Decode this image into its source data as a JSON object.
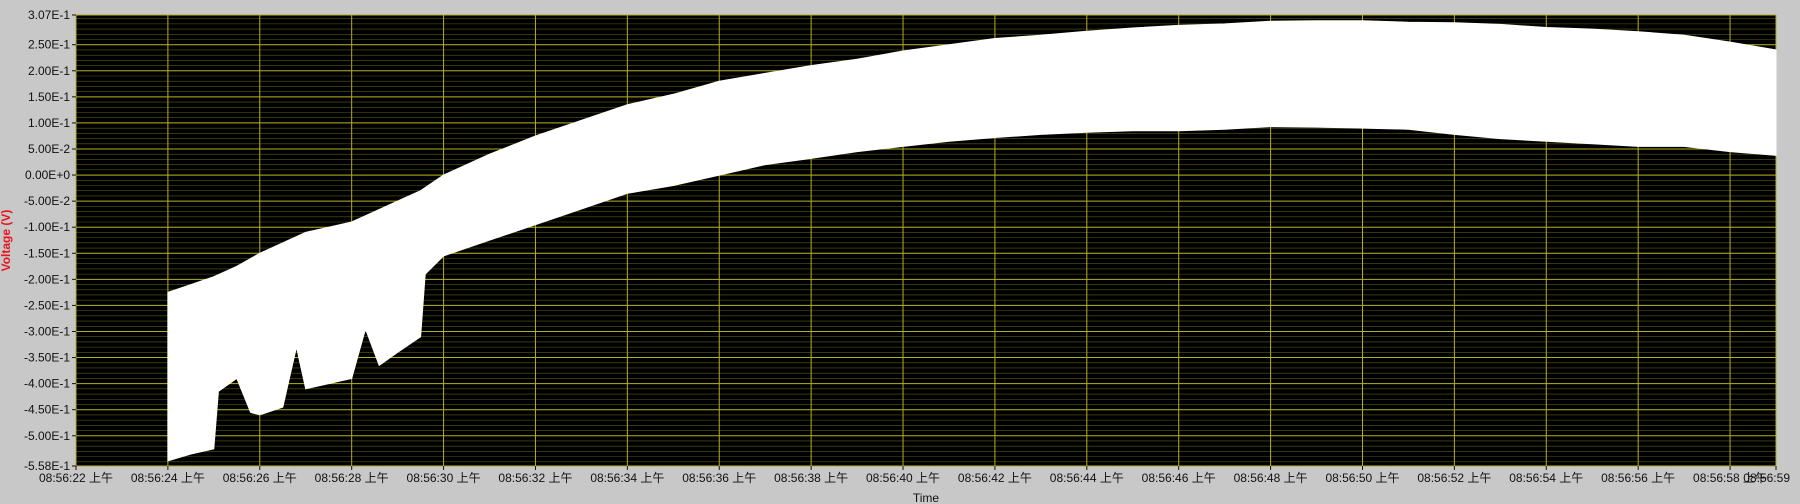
{
  "chart_data": {
    "type": "area",
    "title": "",
    "xlabel": "Time",
    "ylabel": "Voltage (V)",
    "ylim": [
      -0.558,
      0.307
    ],
    "x_start": "08:56:22",
    "x_end": "08:56:59",
    "x_ticks": [
      "08:56:22 上午",
      "08:56:24 上午",
      "08:56:26 上午",
      "08:56:28 上午",
      "08:56:30 上午",
      "08:56:32 上午",
      "08:56:34 上午",
      "08:56:36 上午",
      "08:56:38 上午",
      "08:56:40 上午",
      "08:56:42 上午",
      "08:56:44 上午",
      "08:56:46 上午",
      "08:56:48 上午",
      "08:56:50 上午",
      "08:56:52 上午",
      "08:56:54 上午",
      "08:56:56 上午",
      "08:56:58 上午",
      "08:56:59"
    ],
    "y_ticks": [
      "3.07E-1",
      "2.50E-1",
      "2.00E-1",
      "1.50E-1",
      "1.00E-1",
      "5.00E-2",
      "0.00E+0",
      "-5.00E-2",
      "-1.00E-1",
      "-1.50E-1",
      "-2.00E-1",
      "-2.50E-1",
      "-3.00E-1",
      "-3.50E-1",
      "-4.00E-1",
      "-4.50E-1",
      "-5.00E-1",
      "-5.58E-1"
    ],
    "grid": true,
    "colors": {
      "background": "#000000",
      "grid": "#b5b020",
      "grid_minor": "#5a5a10",
      "signal": "#ffffff",
      "ylabel": "#e8141e",
      "frame": "#c8c8c8"
    },
    "series": [
      {
        "upper_envelope": [
          [
            "08:56:24.0",
            -0.225
          ],
          [
            "08:56:24.5",
            -0.21
          ],
          [
            "08:56:25.0",
            -0.195
          ],
          [
            "08:56:25.5",
            -0.175
          ],
          [
            "08:56:26.0",
            -0.15
          ],
          [
            "08:56:26.5",
            -0.13
          ],
          [
            "08:56:27.0",
            -0.11
          ],
          [
            "08:56:27.5",
            -0.1
          ],
          [
            "08:56:28.0",
            -0.09
          ],
          [
            "08:56:28.5",
            -0.07
          ],
          [
            "08:56:29.0",
            -0.05
          ],
          [
            "08:56:29.5",
            -0.03
          ],
          [
            "08:56:30.0",
            0.0
          ],
          [
            "08:56:31.0",
            0.04
          ],
          [
            "08:56:32.0",
            0.075
          ],
          [
            "08:56:33.0",
            0.105
          ],
          [
            "08:56:34.0",
            0.135
          ],
          [
            "08:56:35.0",
            0.155
          ],
          [
            "08:56:36.0",
            0.18
          ],
          [
            "08:56:37.0",
            0.195
          ],
          [
            "08:56:38.0",
            0.21
          ],
          [
            "08:56:39.0",
            0.222
          ],
          [
            "08:56:40.0",
            0.238
          ],
          [
            "08:56:41.0",
            0.25
          ],
          [
            "08:56:42.0",
            0.262
          ],
          [
            "08:56:43.0",
            0.268
          ],
          [
            "08:56:44.0",
            0.276
          ],
          [
            "08:56:45.0",
            0.282
          ],
          [
            "08:56:46.0",
            0.287
          ],
          [
            "08:56:47.0",
            0.29
          ],
          [
            "08:56:48.0",
            0.295
          ],
          [
            "08:56:49.0",
            0.296
          ],
          [
            "08:56:50.0",
            0.296
          ],
          [
            "08:56:51.0",
            0.293
          ],
          [
            "08:56:52.0",
            0.292
          ],
          [
            "08:56:53.0",
            0.289
          ],
          [
            "08:56:54.0",
            0.283
          ],
          [
            "08:56:55.0",
            0.28
          ],
          [
            "08:56:56.0",
            0.275
          ],
          [
            "08:56:57.0",
            0.268
          ],
          [
            "08:56:58.0",
            0.255
          ],
          [
            "08:56:59.0",
            0.24
          ]
        ],
        "lower_envelope": [
          [
            "08:56:24.0",
            -0.548
          ],
          [
            "08:56:24.5",
            -0.535
          ],
          [
            "08:56:25.0",
            -0.525
          ],
          [
            "08:56:25.1",
            -0.415
          ],
          [
            "08:56:25.5",
            -0.39
          ],
          [
            "08:56:25.8",
            -0.455
          ],
          [
            "08:56:26.0",
            -0.46
          ],
          [
            "08:56:26.5",
            -0.445
          ],
          [
            "08:56:26.8",
            -0.33
          ],
          [
            "08:56:27.0",
            -0.41
          ],
          [
            "08:56:27.5",
            -0.4
          ],
          [
            "08:56:28.0",
            -0.39
          ],
          [
            "08:56:28.3",
            -0.295
          ],
          [
            "08:56:28.6",
            -0.365
          ],
          [
            "08:56:29.0",
            -0.34
          ],
          [
            "08:56:29.5",
            -0.31
          ],
          [
            "08:56:29.6",
            -0.19
          ],
          [
            "08:56:30.0",
            -0.155
          ],
          [
            "08:56:31.0",
            -0.125
          ],
          [
            "08:56:32.0",
            -0.095
          ],
          [
            "08:56:33.0",
            -0.065
          ],
          [
            "08:56:34.0",
            -0.035
          ],
          [
            "08:56:35.0",
            -0.02
          ],
          [
            "08:56:36.0",
            0.0
          ],
          [
            "08:56:37.0",
            0.02
          ],
          [
            "08:56:38.0",
            0.032
          ],
          [
            "08:56:39.0",
            0.045
          ],
          [
            "08:56:40.0",
            0.055
          ],
          [
            "08:56:41.0",
            0.065
          ],
          [
            "08:56:42.0",
            0.072
          ],
          [
            "08:56:43.0",
            0.078
          ],
          [
            "08:56:44.0",
            0.082
          ],
          [
            "08:56:45.0",
            0.085
          ],
          [
            "08:56:46.0",
            0.085
          ],
          [
            "08:56:47.0",
            0.088
          ],
          [
            "08:56:48.0",
            0.093
          ],
          [
            "08:56:49.0",
            0.092
          ],
          [
            "08:56:50.0",
            0.09
          ],
          [
            "08:56:51.0",
            0.088
          ],
          [
            "08:56:52.0",
            0.078
          ],
          [
            "08:56:53.0",
            0.07
          ],
          [
            "08:56:54.0",
            0.065
          ],
          [
            "08:56:55.0",
            0.06
          ],
          [
            "08:56:56.0",
            0.055
          ],
          [
            "08:56:57.0",
            0.055
          ],
          [
            "08:56:58.0",
            0.045
          ],
          [
            "08:56:59.0",
            0.038
          ]
        ]
      }
    ]
  }
}
